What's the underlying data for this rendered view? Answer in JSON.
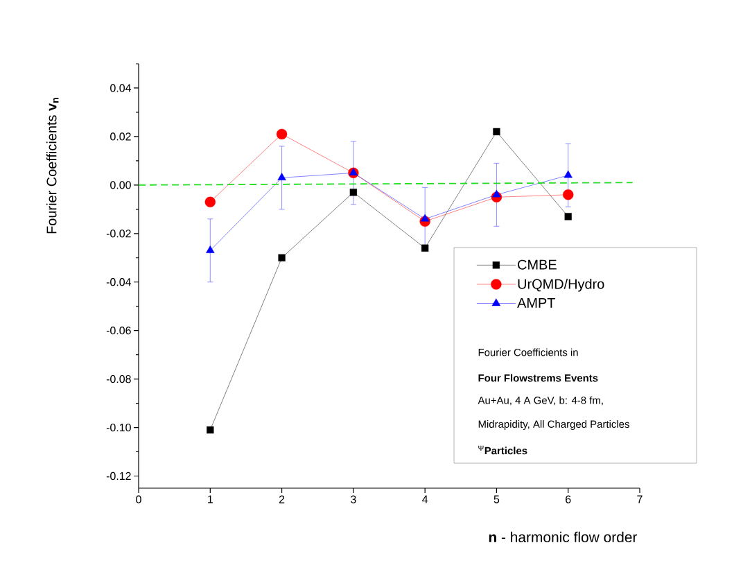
{
  "chart_data": {
    "type": "line",
    "xlabel": "**n** - harmonic flow order",
    "ylabel": "Fourier Coefficients **v$_{n}$**",
    "x": [
      1,
      2,
      3,
      4,
      5,
      6
    ],
    "xlim": [
      0,
      7
    ],
    "ylim": [
      -0.125,
      0.05
    ],
    "xticks": [
      0,
      1,
      2,
      3,
      4,
      5,
      6,
      7
    ],
    "yticks": [
      {
        "value": -0.12,
        "label": "-0.12"
      },
      {
        "value": -0.11,
        "label": null
      },
      {
        "value": -0.1,
        "label": "-0.10"
      },
      {
        "value": -0.09,
        "label": null
      },
      {
        "value": -0.08,
        "label": "-0.08"
      },
      {
        "value": -0.07,
        "label": null
      },
      {
        "value": -0.06,
        "label": "-0.06"
      },
      {
        "value": -0.05,
        "label": null
      },
      {
        "value": -0.04,
        "label": "-0.04"
      },
      {
        "value": -0.03,
        "label": null
      },
      {
        "value": -0.02,
        "label": "-0.02"
      },
      {
        "value": -0.01,
        "label": null
      },
      {
        "value": 0,
        "label": "0.00"
      },
      {
        "value": 0.01,
        "label": null
      },
      {
        "value": 0.02,
        "label": "0.02"
      },
      {
        "value": 0.03,
        "label": null
      },
      {
        "value": 0.04,
        "label": "0.04"
      },
      {
        "value": 0.05,
        "label": null
      }
    ],
    "legend": "bottom right",
    "annotations": [
      "Fourier Coefficients in",
      "**Four Flowstrems Events**",
      "Au+Au, 4 A GeV, b: 4-8 fm,",
      "Midrapidity, All Charged Particles",
      "$^{Ψ}$**Particles**"
    ],
    "series": [
      {
        "name": "CMBE",
        "color": "#000000",
        "marker": "square",
        "values": [
          -0.101,
          -0.03,
          -0.003,
          -0.026,
          0.022,
          -0.013
        ]
      },
      {
        "name": "UrQMD/Hydro",
        "color": "#ff0000",
        "marker": "circle",
        "values": [
          -0.007,
          0.021,
          0.005,
          -0.015,
          -0.005,
          -0.004
        ]
      },
      {
        "name": "AMPT",
        "color": "#0000ff",
        "marker": "triangle",
        "values": [
          -0.027,
          0.003,
          0.005,
          -0.014,
          -0.004,
          0.004
        ],
        "errors": [
          0.013,
          0.013,
          0.013,
          0.013,
          0.013,
          0.013
        ]
      },
      {
        "color": "#22dd22",
        "x": [
          0,
          6.9
        ],
        "values": [
          0,
          0.001
        ],
        "line_style": "dashed",
        "marker": "none"
      }
    ]
  }
}
